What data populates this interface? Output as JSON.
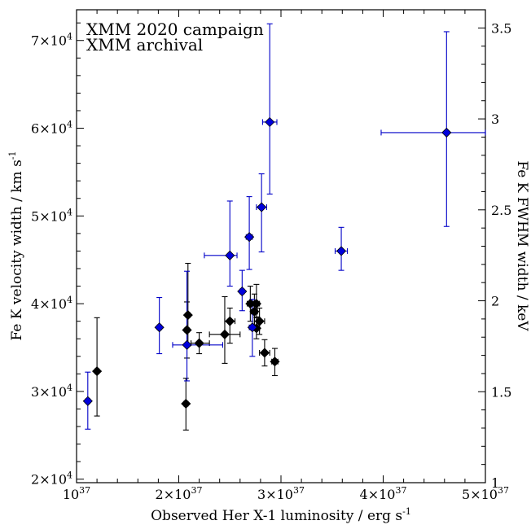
{
  "chart_data": {
    "type": "scatter",
    "title": "",
    "xlabel": "Observed Her X-1 luminosity / erg s",
    "xlabel_sup": "-1",
    "ylabel": "Fe K velocity width / km s",
    "ylabel_sup": "-1",
    "y2label": "Fe K FWHM width / keV",
    "xlim": [
      1e+37,
      5e+37
    ],
    "ylim": [
      19600,
      73500
    ],
    "y2lim": [
      1.0,
      3.6
    ],
    "x_ticks": [
      {
        "value": 1e+37,
        "mant": "10",
        "exp": "37"
      },
      {
        "value": 2e+37,
        "mant": "2×10",
        "exp": "37"
      },
      {
        "value": 3e+37,
        "mant": "3×10",
        "exp": "37"
      },
      {
        "value": 4e+37,
        "mant": "4×10",
        "exp": "37"
      },
      {
        "value": 5e+37,
        "mant": "5×10",
        "exp": "37"
      }
    ],
    "y_ticks": [
      {
        "value": 20000,
        "mant": "2×10",
        "exp": "4"
      },
      {
        "value": 30000,
        "mant": "3×10",
        "exp": "4"
      },
      {
        "value": 40000,
        "mant": "4×10",
        "exp": "4"
      },
      {
        "value": 50000,
        "mant": "5×10",
        "exp": "4"
      },
      {
        "value": 60000,
        "mant": "6×10",
        "exp": "4"
      },
      {
        "value": 70000,
        "mant": "7×10",
        "exp": "4"
      }
    ],
    "y2_ticks": [
      {
        "value": 1,
        "label": "1"
      },
      {
        "value": 1.5,
        "label": "1.5"
      },
      {
        "value": 2,
        "label": "2"
      },
      {
        "value": 2.5,
        "label": "2.5"
      },
      {
        "value": 3,
        "label": "3"
      },
      {
        "value": 3.5,
        "label": "3.5"
      }
    ],
    "legend": "top-left",
    "grid": false,
    "series": [
      {
        "name": "XMM 2020 campaign",
        "color": "#000000",
        "marker_color": "#000000",
        "points": [
          {
            "x": 1.2e+37,
            "y": 32300,
            "xerr": [
              2e+35,
              2e+35
            ],
            "yerr": [
              5100,
              6100
            ]
          },
          {
            "x": 2.07e+37,
            "y": 28600,
            "xerr": [
              2e+35,
              2e+35
            ],
            "yerr": [
              3000,
              2900
            ]
          },
          {
            "x": 2.08e+37,
            "y": 37000,
            "xerr": [
              2e+35,
              2e+35
            ],
            "yerr": [
              3200,
              3200
            ]
          },
          {
            "x": 2.09e+37,
            "y": 38700,
            "xerr": [
              2e+35,
              2e+35
            ],
            "yerr": [
              3500,
              5900
            ]
          },
          {
            "x": 2.2e+37,
            "y": 35500,
            "xerr": [
              8e+35,
              1e+36
            ],
            "yerr": [
              1200,
              1200
            ]
          },
          {
            "x": 2.45e+37,
            "y": 36500,
            "xerr": [
              1.5e+36,
              1.5e+36
            ],
            "yerr": [
              3300,
              4300
            ]
          },
          {
            "x": 2.5e+37,
            "y": 38000,
            "xerr": [
              5e+35,
              5e+35
            ],
            "yerr": [
              2500,
              1500
            ]
          },
          {
            "x": 2.7e+37,
            "y": 40000,
            "xerr": [
              3e+35,
              3e+35
            ],
            "yerr": [
              2000,
              2000
            ]
          },
          {
            "x": 2.74e+37,
            "y": 39100,
            "xerr": [
              3e+35,
              3e+35
            ],
            "yerr": [
              2000,
              2000
            ]
          },
          {
            "x": 2.76e+37,
            "y": 40000,
            "xerr": [
              3e+35,
              3e+35
            ],
            "yerr": [
              1500,
              2200
            ]
          },
          {
            "x": 2.76e+37,
            "y": 37200,
            "xerr": [
              3e+35,
              3e+35
            ],
            "yerr": [
              1200,
              1200
            ]
          },
          {
            "x": 2.79e+37,
            "y": 38000,
            "xerr": [
              5e+35,
              5e+35
            ],
            "yerr": [
              1500,
              1500
            ]
          },
          {
            "x": 2.84e+37,
            "y": 34400,
            "xerr": [
              5e+35,
              5e+35
            ],
            "yerr": [
              1500,
              1500
            ]
          },
          {
            "x": 2.94e+37,
            "y": 33400,
            "xerr": [
              3e+35,
              3e+35
            ],
            "yerr": [
              1600,
              1500
            ]
          }
        ]
      },
      {
        "name": "XMM archival",
        "color": "#0000c8",
        "marker_color": "#0000dc",
        "points": [
          {
            "x": 1.11e+37,
            "y": 28900,
            "xerr": [
              2e+35,
              2e+35
            ],
            "yerr": [
              3200,
              3300
            ]
          },
          {
            "x": 1.81e+37,
            "y": 37300,
            "xerr": [
              2e+35,
              2e+35
            ],
            "yerr": [
              3000,
              3400
            ]
          },
          {
            "x": 2.08e+37,
            "y": 35300,
            "xerr": [
              1.4e+36,
              3.5e+36
            ],
            "yerr": [
              4100,
              8400
            ]
          },
          {
            "x": 2.5e+37,
            "y": 45500,
            "xerr": [
              2.5e+36,
              7e+35
            ],
            "yerr": [
              3500,
              6200
            ]
          },
          {
            "x": 2.62e+37,
            "y": 41400,
            "xerr": [
              2e+35,
              2e+35
            ],
            "yerr": [
              2200,
              2400
            ]
          },
          {
            "x": 2.69e+37,
            "y": 47600,
            "xerr": [
              3e+35,
              3e+35
            ],
            "yerr": [
              3700,
              4600
            ]
          },
          {
            "x": 2.72e+37,
            "y": 37300,
            "xerr": [
              3e+35,
              3e+35
            ],
            "yerr": [
              3300,
              3200
            ]
          },
          {
            "x": 2.81e+37,
            "y": 51000,
            "xerr": [
              5e+35,
              5e+35
            ],
            "yerr": [
              5100,
              3800
            ]
          },
          {
            "x": 2.89e+37,
            "y": 60700,
            "xerr": [
              7e+35,
              7e+35
            ],
            "yerr": [
              8200,
              11200
            ]
          },
          {
            "x": 3.59e+37,
            "y": 46000,
            "xerr": [
              6e+35,
              6e+35
            ],
            "yerr": [
              2200,
              2700
            ]
          },
          {
            "x": 4.62e+37,
            "y": 59500,
            "xerr": [
              6.4e+36,
              3.8e+36
            ],
            "yerr": [
              10700,
              11500
            ]
          }
        ]
      }
    ]
  }
}
